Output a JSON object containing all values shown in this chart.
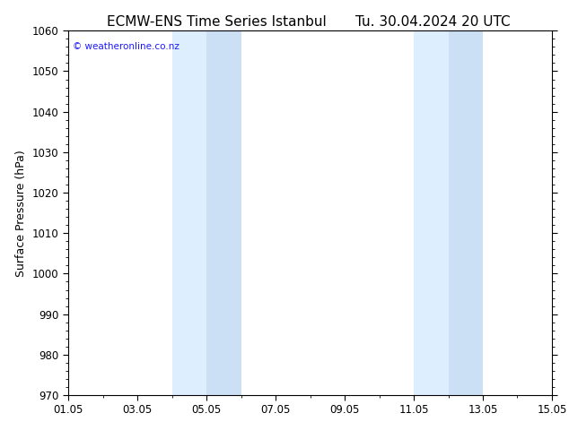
{
  "title_left": "ECMW-ENS Time Series Istanbul",
  "title_right": "Tu. 30.04.2024 20 UTC",
  "ylabel": "Surface Pressure (hPa)",
  "ylim": [
    970,
    1060
  ],
  "yticks": [
    970,
    980,
    990,
    1000,
    1010,
    1020,
    1030,
    1040,
    1050,
    1060
  ],
  "xlim_start": 0,
  "xlim_end": 14,
  "xtick_labels": [
    "01.05",
    "03.05",
    "05.05",
    "07.05",
    "09.05",
    "11.05",
    "13.05",
    "15.05"
  ],
  "xtick_positions": [
    0,
    2,
    4,
    6,
    8,
    10,
    12,
    14
  ],
  "shaded_regions": [
    {
      "xmin": 3.0,
      "xmax": 4.0,
      "color": "#ddeeff"
    },
    {
      "xmin": 4.0,
      "xmax": 5.0,
      "color": "#cce0f5"
    },
    {
      "xmin": 10.0,
      "xmax": 11.0,
      "color": "#ddeeff"
    },
    {
      "xmin": 11.0,
      "xmax": 12.0,
      "color": "#cce0f5"
    }
  ],
  "watermark_text": "© weatheronline.co.nz",
  "watermark_color": "#1a1aff",
  "background_color": "#ffffff",
  "plot_bg_color": "#ffffff",
  "tick_color": "#000000",
  "spine_color": "#000000",
  "title_fontsize": 11,
  "label_fontsize": 9,
  "tick_fontsize": 8.5
}
